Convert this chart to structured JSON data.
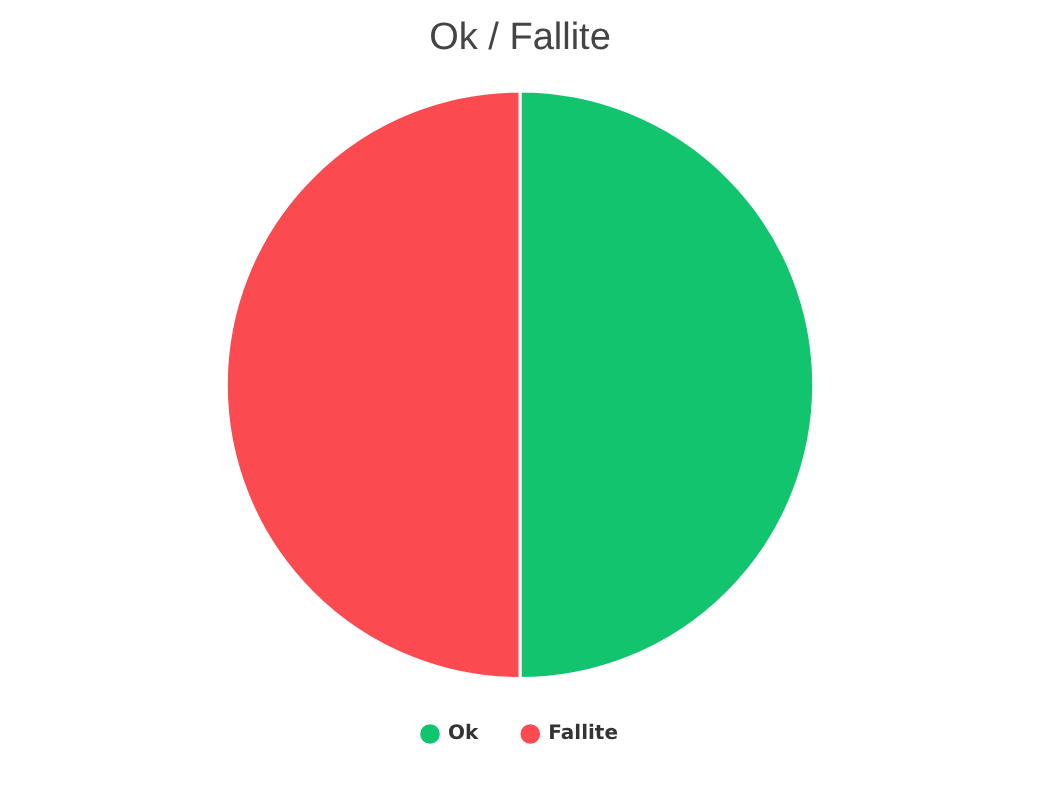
{
  "chart_data": {
    "type": "pie",
    "title": "Ok / Fallite",
    "categories": [
      "Ok",
      "Fallite"
    ],
    "values": [
      50,
      50
    ],
    "colors": [
      "#13c46e",
      "#fc4a51"
    ],
    "legend": "bottom"
  }
}
